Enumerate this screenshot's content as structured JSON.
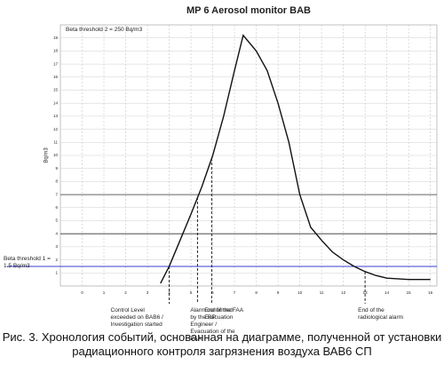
{
  "chart_data": {
    "type": "line",
    "title": "MP 6 Aerosol monitor BAB",
    "y_label": "Bq/m3",
    "xlim": [
      -1,
      16.3
    ],
    "xticks": [
      0,
      1,
      2,
      3,
      4,
      5,
      6,
      7,
      8,
      9,
      10,
      11,
      12,
      13,
      14,
      15,
      16
    ],
    "ylim": [
      0,
      20
    ],
    "yticks": [
      1,
      2,
      3,
      4,
      5,
      6,
      7,
      8,
      9,
      10,
      11,
      12,
      13,
      14,
      15,
      16,
      17,
      18,
      19
    ],
    "grid": true,
    "series": [
      {
        "color": "#111111",
        "x": [
          3.6,
          4,
          4.5,
          5,
          5.5,
          6,
          6.5,
          7,
          7.4,
          8,
          8.5,
          9,
          9.5,
          10,
          10.5,
          11,
          11.5,
          12,
          12.5,
          13,
          13.5,
          14,
          15,
          16
        ],
        "values": [
          0.2,
          1.5,
          3.5,
          5.5,
          7.6,
          10,
          13,
          16.5,
          19.2,
          18,
          16.5,
          14,
          11,
          7,
          4.5,
          3.5,
          2.6,
          2,
          1.5,
          1.1,
          0.8,
          0.6,
          0.5,
          0.5
        ]
      }
    ],
    "reference_lines": [
      {
        "value": 1.5,
        "color": "#3b3bd6",
        "label": "Beta threshold 1 = 1.5 Bq/m3"
      },
      {
        "value": 4,
        "color": "#333333"
      },
      {
        "value": 7,
        "color": "#333333"
      }
    ],
    "top_note": "Beta threshold 2 = 250 Bq/m3",
    "events": [
      {
        "x": 4,
        "y": 1.5,
        "label": "Control Level exceeded on BAB6 / Investigation started"
      },
      {
        "x": 5.3,
        "y": 6.8,
        "label": "Alarm confirmed by the RP Engineer / Evacuation of the FAA"
      },
      {
        "x": 5.95,
        "y": 9.8,
        "label": "End of the FAA Evacuation"
      },
      {
        "x": 13,
        "y": 1.1,
        "label": "End of the radiological alarm"
      }
    ]
  },
  "caption": "Рис. 3. Хронология событий, основанная на диаграмме, полученной от установки радиационного контроля загрязнения воздуха ВАВ6 СП"
}
